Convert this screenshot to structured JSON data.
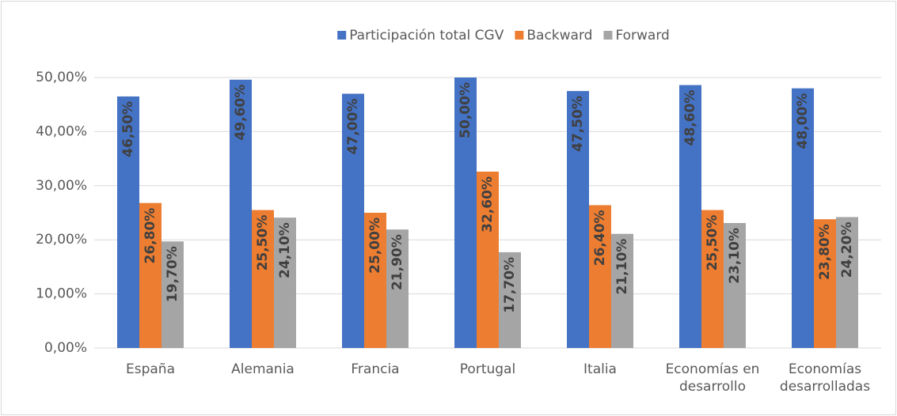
{
  "chart_data": {
    "type": "bar",
    "categories": [
      "España",
      "Alemania",
      "Francia",
      "Portugal",
      "Italia",
      "Economías en desarrollo",
      "Economías desarrolladas"
    ],
    "series": [
      {
        "name": "Participación total CGV",
        "color": "#4472c4",
        "values": [
          46.5,
          49.6,
          47.0,
          50.0,
          47.5,
          48.6,
          48.0
        ],
        "value_labels": [
          "46,50%",
          "49,60%",
          "47,00%",
          "50,00%",
          "47,50%",
          "48,60%",
          "48,00%"
        ]
      },
      {
        "name": "Backward",
        "color": "#ed7d31",
        "values": [
          26.8,
          25.5,
          25.0,
          32.6,
          26.4,
          25.5,
          23.8
        ],
        "value_labels": [
          "26,80%",
          "25,50%",
          "25,00%",
          "32,60%",
          "26,40%",
          "25,50%",
          "23,80%"
        ]
      },
      {
        "name": "Forward",
        "color": "#a5a5a5",
        "values": [
          19.7,
          24.1,
          21.9,
          17.7,
          21.1,
          23.1,
          24.2
        ],
        "value_labels": [
          "19,70%",
          "24,10%",
          "21,90%",
          "17,70%",
          "21,10%",
          "23,10%",
          "24,20%"
        ]
      }
    ],
    "ylim": [
      0,
      50
    ],
    "yticks": [
      {
        "value": 0,
        "label": "0,00%"
      },
      {
        "value": 10,
        "label": "10,00%"
      },
      {
        "value": 20,
        "label": "20,00%"
      },
      {
        "value": 30,
        "label": "30,00%"
      },
      {
        "value": 40,
        "label": "40,00%"
      },
      {
        "value": 50,
        "label": "50,00%"
      }
    ],
    "grid": true,
    "legend": "top"
  }
}
